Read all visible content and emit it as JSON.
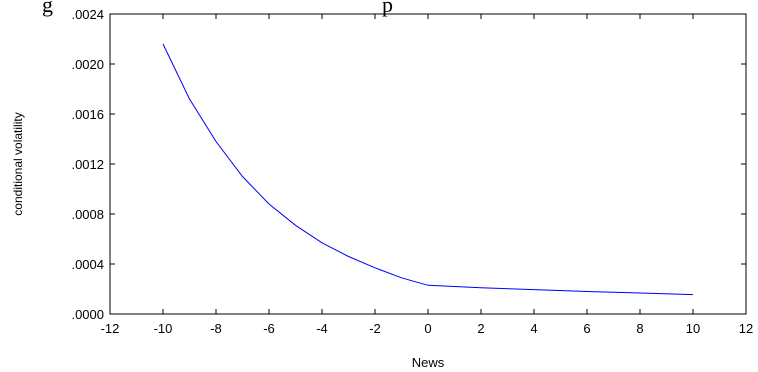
{
  "caption": {
    "fragment_left": "g",
    "fragment_right": "p"
  },
  "chart_data": {
    "type": "line",
    "title": "",
    "xlabel": "News",
    "ylabel": "conditional volatility",
    "xlim": [
      -12,
      12
    ],
    "ylim": [
      0,
      0.0024
    ],
    "x_ticks": [
      {
        "value": -12,
        "label": "-12"
      },
      {
        "value": -10,
        "label": "-10"
      },
      {
        "value": -8,
        "label": "-8"
      },
      {
        "value": -6,
        "label": "-6"
      },
      {
        "value": -4,
        "label": "-4"
      },
      {
        "value": -2,
        "label": "-2"
      },
      {
        "value": 0,
        "label": "0"
      },
      {
        "value": 2,
        "label": "2"
      },
      {
        "value": 4,
        "label": "4"
      },
      {
        "value": 6,
        "label": "6"
      },
      {
        "value": 8,
        "label": "8"
      },
      {
        "value": 10,
        "label": "10"
      },
      {
        "value": 12,
        "label": "12"
      }
    ],
    "y_ticks": [
      {
        "value": 0,
        "label": ".0000"
      },
      {
        "value": 0.0004,
        "label": ".0004"
      },
      {
        "value": 0.0008,
        "label": ".0008"
      },
      {
        "value": 0.0012,
        "label": ".0012"
      },
      {
        "value": 0.0016,
        "label": ".0016"
      },
      {
        "value": 0.002,
        "label": ".0020"
      },
      {
        "value": 0.0024,
        "label": ".0024"
      }
    ],
    "grid": false,
    "series": [
      {
        "color": "#0000ff",
        "x": [
          -10,
          -9,
          -8,
          -7,
          -6,
          -5,
          -4,
          -3,
          -2,
          -1,
          0,
          2,
          4,
          6,
          8,
          10
        ],
        "y": [
          0.00216,
          0.00172,
          0.00138,
          0.0011,
          0.00088,
          0.00071,
          0.00057,
          0.00046,
          0.00037,
          0.00029,
          0.00023,
          0.00021,
          0.000195,
          0.00018,
          0.000168,
          0.000155
        ]
      }
    ]
  }
}
